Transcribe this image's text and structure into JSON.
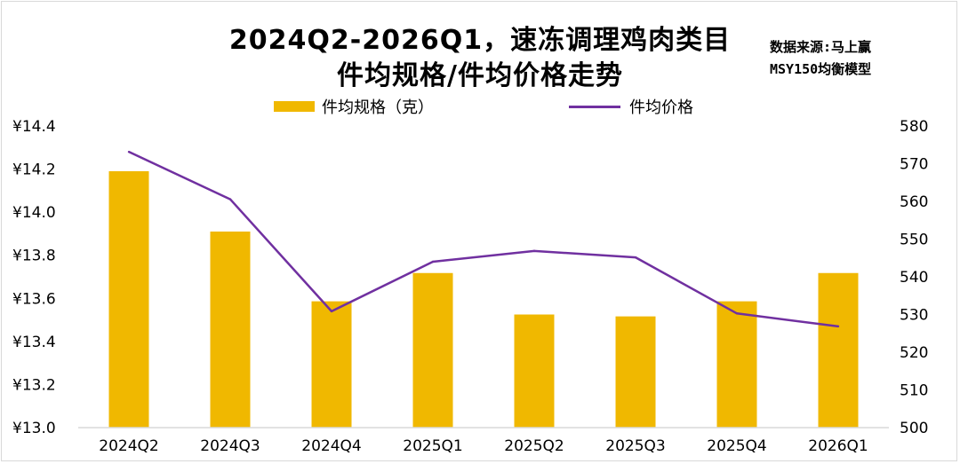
{
  "title_line1": "2024Q2-2026Q1，速冻调理鸡肉类目",
  "title_line2": "件均规格/件均价格走势",
  "source_line1": "数据来源:马上赢",
  "source_line2": "MSY150均衡模型",
  "colors": {
    "bar": "#f0b800",
    "line": "#7030a0",
    "axis": "#d9d9d9"
  },
  "chart_data": {
    "type": "bar+line",
    "title": "2024Q2-2026Q1，速冻调理鸡肉类目 件均规格/件均价格走势",
    "categories": [
      "2024Q2",
      "2024Q3",
      "2024Q4",
      "2025Q1",
      "2025Q2",
      "2025Q3",
      "2025Q4",
      "2026Q1"
    ],
    "series": [
      {
        "name": "件均规格（克）",
        "type": "bar",
        "axis": "right",
        "values": [
          568,
          552,
          533.5,
          541,
          530,
          529.5,
          533.5,
          541
        ]
      },
      {
        "name": "件均价格",
        "type": "line",
        "axis": "left",
        "values": [
          14.28,
          14.06,
          13.54,
          13.77,
          13.82,
          13.79,
          13.53,
          13.47
        ]
      }
    ],
    "y_left": {
      "ylim": [
        13.0,
        14.4
      ],
      "ticks": [
        "¥13.0",
        "¥13.2",
        "¥13.4",
        "¥13.6",
        "¥13.8",
        "¥14.0",
        "¥14.2",
        "¥14.4"
      ]
    },
    "y_right": {
      "ylim": [
        500,
        580
      ],
      "ticks": [
        "500",
        "510",
        "520",
        "530",
        "540",
        "550",
        "560",
        "570",
        "580"
      ]
    },
    "legend_position": "top",
    "grid": false
  }
}
